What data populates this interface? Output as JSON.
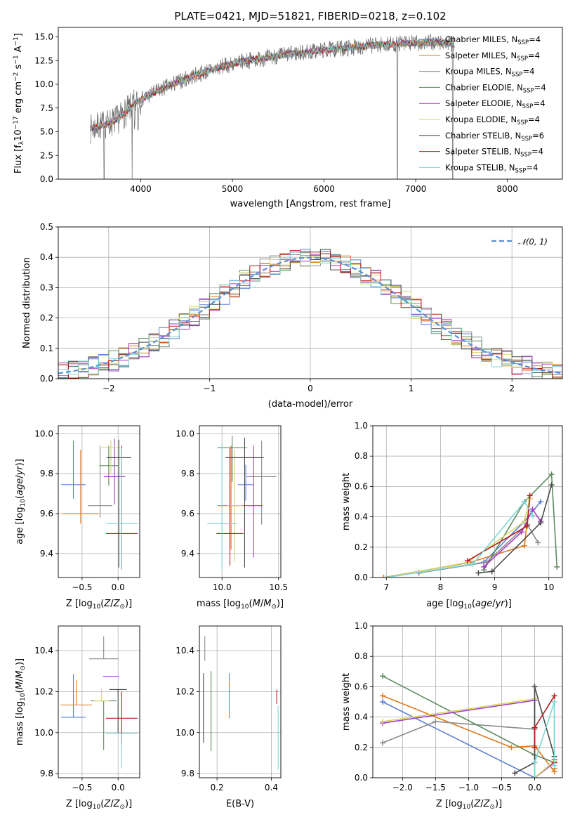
{
  "figure_title": "PLATE=0421, MJD=51821, FIBERID=0218, z=0.102",
  "model_colors": [
    "#5b80d6",
    "#e07b1f",
    "#8c8c8c",
    "#5f8a5f",
    "#a63fc4",
    "#d6d66a",
    "#4a4a4a",
    "#b81c1c",
    "#7fd6d6"
  ],
  "chart_data": [
    {
      "id": "spectrum",
      "type": "line",
      "title": "PLATE=0421, MJD=51821, FIBERID=0218, z=0.102",
      "xlabel": "wavelength [Angstrom, rest frame]",
      "ylabel": "Flux [f_λ 10^-17 erg cm^-2 s^-1 A^-1]",
      "xlim": [
        3100,
        8600
      ],
      "ylim": [
        0,
        16
      ],
      "xticks": [
        4000,
        5000,
        6000,
        7000,
        8000
      ],
      "yticks": [
        0.0,
        2.5,
        5.0,
        7.5,
        10.0,
        12.5,
        15.0
      ],
      "grid": false,
      "legend_position": "top-right",
      "data_color": "#6e6e6e",
      "data_range": [
        3450,
        7420
      ],
      "continuum": {
        "x": [
          3450,
          3550,
          3650,
          3750,
          3850,
          3950,
          4100,
          4300,
          4500,
          4700,
          4900,
          5100,
          5300,
          5500,
          5700,
          5900,
          6100,
          6300,
          6500,
          6700,
          6900,
          7100,
          7300,
          7420
        ],
        "y": [
          5.3,
          5.6,
          5.9,
          6.3,
          7.2,
          8.1,
          8.9,
          9.8,
          10.6,
          11.3,
          11.9,
          12.4,
          12.7,
          13.0,
          13.3,
          13.5,
          13.7,
          13.9,
          14.1,
          14.2,
          14.3,
          14.4,
          14.4,
          14.2
        ]
      },
      "series": [
        {
          "name": "Chabrier MILES, N_SSP=4",
          "label_main": "Chabrier MILES, N",
          "label_sub": "SSP",
          "label_end": "=4"
        },
        {
          "name": "Salpeter MILES, N_SSP=4",
          "label_main": "Salpeter MILES, N",
          "label_sub": "SSP",
          "label_end": "=4"
        },
        {
          "name": "Kroupa MILES, N_SSP=4",
          "label_main": "Kroupa MILES, N",
          "label_sub": "SSP",
          "label_end": "=4"
        },
        {
          "name": "Chabrier ELODIE, N_SSP=4",
          "label_main": "Chabrier ELODIE, N",
          "label_sub": "SSP",
          "label_end": "=4"
        },
        {
          "name": "Salpeter ELODIE, N_SSP=4",
          "label_main": "Salpeter ELODIE, N",
          "label_sub": "SSP",
          "label_end": "=4"
        },
        {
          "name": "Kroupa ELODIE, N_SSP=4",
          "label_main": "Kroupa ELODIE, N",
          "label_sub": "SSP",
          "label_end": "=4"
        },
        {
          "name": "Chabrier STELIB, N_SSP=6",
          "label_main": "Chabrier STELIB, N",
          "label_sub": "SSP",
          "label_end": "=6"
        },
        {
          "name": "Salpeter STELIB, N_SSP=4",
          "label_main": "Salpeter STELIB, N",
          "label_sub": "SSP",
          "label_end": "=4"
        },
        {
          "name": "Kroupa STELIB, N_SSP=4",
          "label_main": "Kroupa STELIB, N",
          "label_sub": "SSP",
          "label_end": "=4"
        }
      ]
    },
    {
      "id": "residuals",
      "type": "area",
      "xlabel": "(data-model)/error",
      "ylabel": "Normed distribution",
      "xlim": [
        -2.5,
        2.5
      ],
      "ylim": [
        0,
        0.5
      ],
      "xticks": [
        -2,
        -1,
        0,
        1,
        2
      ],
      "yticks": [
        0.0,
        0.1,
        0.2,
        0.3,
        0.4,
        0.5
      ],
      "grid": true,
      "legend_position": "top-right",
      "bins": {
        "start": -2.5,
        "width": 0.1,
        "count": 50
      },
      "reference_curve": {
        "name": "N(0,1)",
        "label": "𝒩(0, 1)",
        "style": "dashed",
        "color": "#5b8fd6",
        "mean": 0,
        "sigma": 1
      }
    },
    {
      "id": "age_vs_Z",
      "type": "scatter",
      "xlabel": "Z [log10(Z/Z⊙)]",
      "ylabel": "age [log10(age/yr)]",
      "xlim": [
        -0.83,
        0.3
      ],
      "ylim": [
        9.28,
        10.04
      ],
      "xticks": [
        -0.5,
        0.0
      ],
      "yticks": [
        9.4,
        9.6,
        9.8,
        10.0
      ],
      "grid": true,
      "points": [
        {
          "x": -0.62,
          "y": 9.745,
          "xerr": 0.17,
          "yerr": [
            0.07,
            0.22
          ]
        },
        {
          "x": -0.52,
          "y": 9.6,
          "xerr": 0.25,
          "yerr": [
            0.05,
            0.32
          ]
        },
        {
          "x": -0.25,
          "y": 9.64,
          "xerr": 0.17,
          "yerr": [
            0.06,
            0.3
          ]
        },
        {
          "x": -0.13,
          "y": 9.84,
          "xerr": 0.13,
          "yerr": [
            0.1,
            0.1
          ]
        },
        {
          "x": -0.05,
          "y": 9.785,
          "xerr": 0.15,
          "yerr": [
            0.14,
            0.19
          ]
        },
        {
          "x": -0.1,
          "y": 9.93,
          "xerr": 0.13,
          "yerr": [
            0.13,
            0.04
          ]
        },
        {
          "x": 0.01,
          "y": 9.88,
          "xerr": 0.17,
          "yerr": [
            0.55,
            0.09
          ]
        },
        {
          "x": 0.05,
          "y": 9.5,
          "xerr": 0.22,
          "yerr": [
            0.18,
            0.44
          ]
        },
        {
          "x": 0.05,
          "y": 9.55,
          "xerr": 0.22,
          "yerr": [
            0.23,
            0.38
          ]
        }
      ]
    },
    {
      "id": "age_vs_mass",
      "type": "scatter",
      "xlabel": "mass [log10(M/M⊙)]",
      "ylabel": "",
      "xlim": [
        9.8,
        10.52
      ],
      "ylim": [
        9.28,
        10.04
      ],
      "xticks": [
        10.0,
        10.5
      ],
      "yticks": [
        9.4,
        9.6,
        9.8,
        10.0
      ],
      "grid": true,
      "points": [
        {
          "x": 10.21,
          "y": 9.745,
          "xerr": 0.07,
          "yerr": [
            0.08,
            0.1
          ]
        },
        {
          "x": 10.08,
          "y": 9.64,
          "xerr": 0.12,
          "yerr": [
            0.22,
            0.3
          ]
        },
        {
          "x": 10.35,
          "y": 9.785,
          "xerr": 0.13,
          "yerr": [
            0.24,
            0.18
          ]
        },
        {
          "x": 10.09,
          "y": 9.93,
          "xerr": 0.13,
          "yerr": [
            0.17,
            0.06
          ]
        },
        {
          "x": 10.28,
          "y": 9.64,
          "xerr": 0.08,
          "yerr": [
            0.26,
            0.3
          ]
        },
        {
          "x": 10.11,
          "y": 9.64,
          "xerr": 0.07,
          "yerr": [
            0.28,
            0.28
          ]
        },
        {
          "x": 10.2,
          "y": 9.88,
          "xerr": 0.17,
          "yerr": [
            0.55,
            0.1
          ]
        },
        {
          "x": 10.07,
          "y": 9.5,
          "xerr": 0.12,
          "yerr": [
            0.16,
            0.43
          ]
        },
        {
          "x": 10.0,
          "y": 9.55,
          "xerr": 0.13,
          "yerr": [
            0.23,
            0.4
          ]
        }
      ]
    },
    {
      "id": "weight_vs_age",
      "type": "line",
      "xlabel": "age [log10(age/yr)]",
      "ylabel": "mass weight",
      "xlim": [
        6.75,
        10.25
      ],
      "ylim": [
        0,
        1.0
      ],
      "xticks": [
        7,
        8,
        9,
        10
      ],
      "yticks": [
        0.0,
        0.2,
        0.4,
        0.6,
        0.8,
        1.0
      ],
      "grid": true,
      "series": [
        {
          "x": [
            7.6,
            8.8,
            9.55,
            9.85
          ],
          "y": [
            0.03,
            0.1,
            0.37,
            0.5
          ]
        },
        {
          "x": [
            6.95,
            8.55,
            9.55,
            9.65
          ],
          "y": [
            0.0,
            0.1,
            0.21,
            0.52
          ]
        },
        {
          "x": [
            7.6,
            8.85,
            9.6,
            9.8
          ],
          "y": [
            0.03,
            0.1,
            0.35,
            0.23
          ]
        },
        {
          "x": [
            8.8,
            9.55,
            10.05,
            10.15
          ],
          "y": [
            0.05,
            0.5,
            0.68,
            0.07
          ]
        },
        {
          "x": [
            8.8,
            9.5,
            9.7,
            9.85
          ],
          "y": [
            0.07,
            0.3,
            0.45,
            0.37
          ]
        },
        {
          "x": [
            7.0,
            8.5,
            9.55,
            9.65
          ],
          "y": [
            0.0,
            0.1,
            0.37,
            0.52
          ]
        },
        {
          "x": [
            8.7,
            8.95,
            9.85,
            10.05
          ],
          "y": [
            0.03,
            0.04,
            0.36,
            0.61
          ]
        },
        {
          "x": [
            8.5,
            9.6,
            9.65
          ],
          "y": [
            0.11,
            0.34,
            0.54
          ]
        },
        {
          "x": [
            7.0,
            8.6,
            9.55,
            9.7
          ],
          "y": [
            0.0,
            0.09,
            0.5,
            0.41
          ]
        }
      ]
    },
    {
      "id": "mass_vs_Z",
      "type": "scatter",
      "xlabel": "Z [log10(Z/Z⊙)]",
      "ylabel": "mass [log10(M/M⊙)]",
      "xlim": [
        -0.83,
        0.3
      ],
      "ylim": [
        9.78,
        10.52
      ],
      "xticks": [
        -0.5,
        0.0
      ],
      "yticks": [
        9.8,
        10.0,
        10.2,
        10.4
      ],
      "grid": true,
      "points": [
        {
          "x": -0.62,
          "y": 10.075,
          "xerr": 0.17,
          "yerr": [
            0.0,
            0.21
          ]
        },
        {
          "x": -0.58,
          "y": 10.135,
          "xerr": 0.22,
          "yerr": [
            0.0,
            0.12
          ]
        },
        {
          "x": -0.2,
          "y": 10.36,
          "xerr": 0.2,
          "yerr": [
            0.0,
            0.11
          ]
        },
        {
          "x": -0.2,
          "y": 10.155,
          "xerr": 0.18,
          "yerr": [
            0.24,
            0.0
          ]
        },
        {
          "x": -0.1,
          "y": 10.275,
          "xerr": 0.11,
          "yerr": [
            0.0,
            0.0
          ]
        },
        {
          "x": -0.23,
          "y": 10.155,
          "xerr": 0.11,
          "yerr": [
            0.0,
            0.06
          ]
        },
        {
          "x": 0.0,
          "y": 10.21,
          "xerr": 0.12,
          "yerr": [
            0.21,
            0.0
          ]
        },
        {
          "x": 0.05,
          "y": 10.07,
          "xerr": 0.22,
          "yerr": [
            0.13,
            0.13
          ]
        },
        {
          "x": 0.05,
          "y": 9.995,
          "xerr": 0.22,
          "yerr": [
            0.17,
            0.0
          ]
        }
      ]
    },
    {
      "id": "mass_vs_ebv",
      "type": "scatter",
      "xlabel": "E(B-V)",
      "ylabel": "",
      "xlim": [
        0.135,
        0.435
      ],
      "ylim": [
        9.78,
        10.52
      ],
      "xticks": [
        0.2,
        0.4
      ],
      "yticks": [
        9.8,
        10.0,
        10.2,
        10.4
      ],
      "grid": true,
      "points": [
        {
          "x": 0.245,
          "y": 10.19,
          "yerr": [
            0.12,
            0.1
          ]
        },
        {
          "x": 0.245,
          "y": 10.15,
          "yerr": [
            0.08,
            0.1
          ]
        },
        {
          "x": 0.155,
          "y": 10.35,
          "yerr": [
            0.0,
            0.12
          ]
        },
        {
          "x": 0.178,
          "y": 10.1,
          "yerr": [
            0.19,
            0.2
          ]
        },
        {
          "x": 0.16,
          "y": 10.3,
          "yerr": [
            0.0,
            0.0
          ]
        },
        {
          "x": 0.163,
          "y": 10.2,
          "yerr": [
            0.0,
            0.0
          ]
        },
        {
          "x": 0.15,
          "y": 10.07,
          "yerr": [
            0.12,
            0.22
          ]
        },
        {
          "x": 0.42,
          "y": 10.17,
          "yerr": [
            0.03,
            0.04
          ]
        },
        {
          "x": 0.425,
          "y": 10.0,
          "yerr": [
            0.18,
            0.13
          ]
        }
      ]
    },
    {
      "id": "weight_vs_Z",
      "type": "line",
      "xlabel": "Z [log10(Z/Z⊙)]",
      "ylabel": "mass weight",
      "xlim": [
        -2.45,
        0.42
      ],
      "ylim": [
        0,
        1.0
      ],
      "xticks": [
        -2.0,
        -1.5,
        -1.0,
        -0.5,
        0.0
      ],
      "yticks": [
        0.0,
        0.2,
        0.4,
        0.6,
        0.8,
        1.0
      ],
      "grid": true,
      "series": [
        {
          "x": [
            -2.3,
            0.0,
            0.3
          ],
          "y": [
            0.5,
            0.0,
            0.1
          ]
        },
        {
          "x": [
            -2.3,
            -0.35,
            0.0,
            0.3,
            0.3
          ],
          "y": [
            0.54,
            0.2,
            0.21,
            0.04,
            0.06
          ]
        },
        {
          "x": [
            -2.3,
            -1.5,
            0.0,
            0.0,
            0.3
          ],
          "y": [
            0.23,
            0.37,
            0.32,
            0.0,
            0.1
          ]
        },
        {
          "x": [
            -2.3,
            0.0,
            0.3
          ],
          "y": [
            0.67,
            0.15,
            0.1
          ]
        },
        {
          "x": [
            -2.3,
            0.0,
            0.0,
            0.3,
            0.3
          ],
          "y": [
            0.36,
            0.51,
            0.0,
            0.1,
            0.12
          ]
        },
        {
          "x": [
            -2.3,
            0.0,
            0.0,
            0.3
          ],
          "y": [
            0.37,
            0.52,
            0.0,
            0.11
          ]
        },
        {
          "x": [
            -0.3,
            0.0,
            0.0,
            0.3
          ],
          "y": [
            0.03,
            0.1,
            0.6,
            0.14
          ]
        },
        {
          "x": [
            0.0,
            0.0,
            0.3,
            0.3
          ],
          "y": [
            0.2,
            0.33,
            0.54,
            0.1
          ]
        },
        {
          "x": [
            0.0,
            0.0,
            0.3,
            0.3
          ],
          "y": [
            0.0,
            0.1,
            0.5,
            0.08
          ]
        }
      ]
    }
  ]
}
